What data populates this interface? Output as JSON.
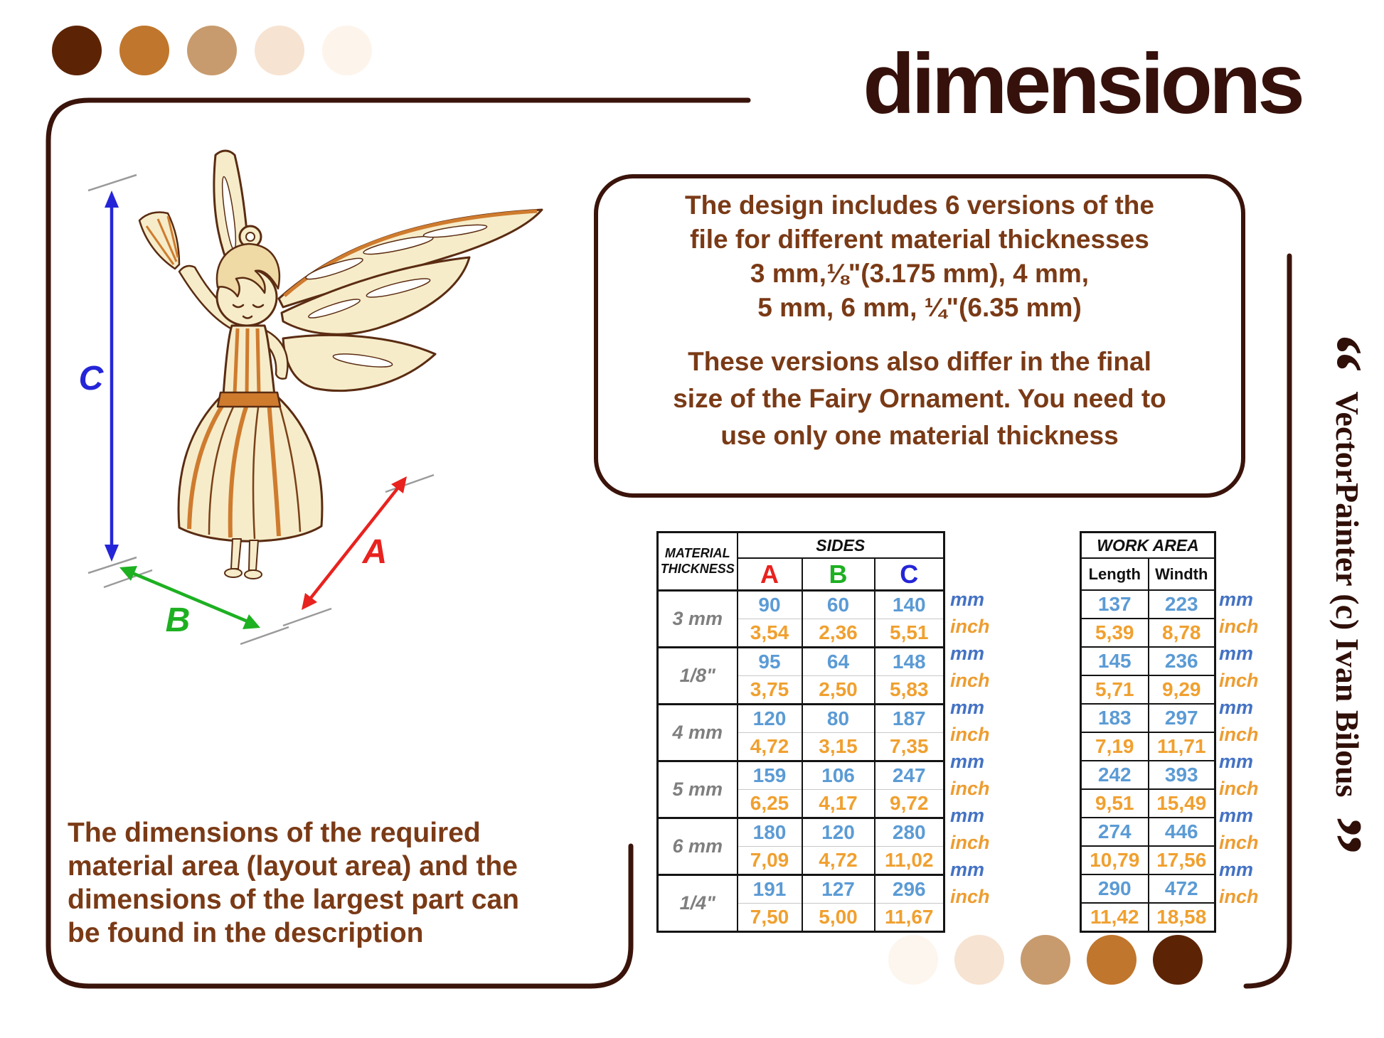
{
  "title": "dimensions",
  "quote_box": {
    "para1_lines": [
      "The design includes 6 versions of the",
      "file for different material thicknesses",
      "3 mm,⅛\"(3.175 mm), 4 mm,",
      "5 mm, 6 mm, ¼\"(6.35 mm)"
    ],
    "para2_lines": [
      "These versions also differ in the final",
      "size of the Fairy Ornament. You need to",
      "use only one material thickness"
    ]
  },
  "bottom_note_lines": [
    "The dimensions of the required",
    "material area (layout area) and the",
    "dimensions of the largest part can",
    "be found in the description"
  ],
  "diagram": {
    "label_a": "A",
    "label_b": "B",
    "label_c": "C"
  },
  "tables": {
    "sides": {
      "title": "SIDES",
      "material_label": [
        "MATERIAL",
        "THICKNESS"
      ],
      "columns": [
        "A",
        "B",
        "C"
      ],
      "rows": [
        {
          "thickness": "3 mm",
          "mm": [
            "90",
            "60",
            "140"
          ],
          "inch": [
            "3,54",
            "2,36",
            "5,51"
          ]
        },
        {
          "thickness": "1/8\"",
          "mm": [
            "95",
            "64",
            "148"
          ],
          "inch": [
            "3,75",
            "2,50",
            "5,83"
          ]
        },
        {
          "thickness": "4 mm",
          "mm": [
            "120",
            "80",
            "187"
          ],
          "inch": [
            "4,72",
            "3,15",
            "7,35"
          ]
        },
        {
          "thickness": "5 mm",
          "mm": [
            "159",
            "106",
            "247"
          ],
          "inch": [
            "6,25",
            "4,17",
            "9,72"
          ]
        },
        {
          "thickness": "6 mm",
          "mm": [
            "180",
            "120",
            "280"
          ],
          "inch": [
            "7,09",
            "4,72",
            "11,02"
          ]
        },
        {
          "thickness": "1/4\"",
          "mm": [
            "191",
            "127",
            "296"
          ],
          "inch": [
            "7,50",
            "5,00",
            "11,67"
          ]
        }
      ]
    },
    "work_area": {
      "title": "WORK AREA",
      "columns": [
        "Length",
        "Windth"
      ],
      "rows": [
        {
          "mm": [
            "137",
            "223"
          ],
          "inch": [
            "5,39",
            "8,78"
          ]
        },
        {
          "mm": [
            "145",
            "236"
          ],
          "inch": [
            "5,71",
            "9,29"
          ]
        },
        {
          "mm": [
            "183",
            "297"
          ],
          "inch": [
            "7,19",
            "11,71"
          ]
        },
        {
          "mm": [
            "242",
            "393"
          ],
          "inch": [
            "9,51",
            "15,49"
          ]
        },
        {
          "mm": [
            "274",
            "446"
          ],
          "inch": [
            "10,79",
            "17,56"
          ]
        },
        {
          "mm": [
            "290",
            "472"
          ],
          "inch": [
            "11,42",
            "18,58"
          ]
        }
      ]
    },
    "units": {
      "mm": "mm",
      "inch": "inch"
    }
  },
  "credit": {
    "open_quote": "“",
    "text": "VectorPainter (c) Ivan Bilous",
    "close_quote": "”"
  },
  "colors": {
    "border_dark": "#3a140b",
    "title": "#36110b",
    "text_brown": "#7a3a16",
    "value_mm": "#5b9bd5",
    "value_inch": "#f0a030",
    "unit_mm": "#4472c4",
    "unit_inch": "#ed9d31",
    "label_a": "#e8221f",
    "label_b": "#1db021",
    "label_c": "#2525d8",
    "thickness_gray": "#7f7f7f",
    "palette_top": [
      "#5c2405",
      "#c0762c",
      "#c79b6e",
      "#f7e3d2",
      "#fdf4eb"
    ],
    "palette_bottom": [
      "#fdf6ee",
      "#f7e3d2",
      "#c79b6e",
      "#c0762c",
      "#5c2405"
    ]
  }
}
